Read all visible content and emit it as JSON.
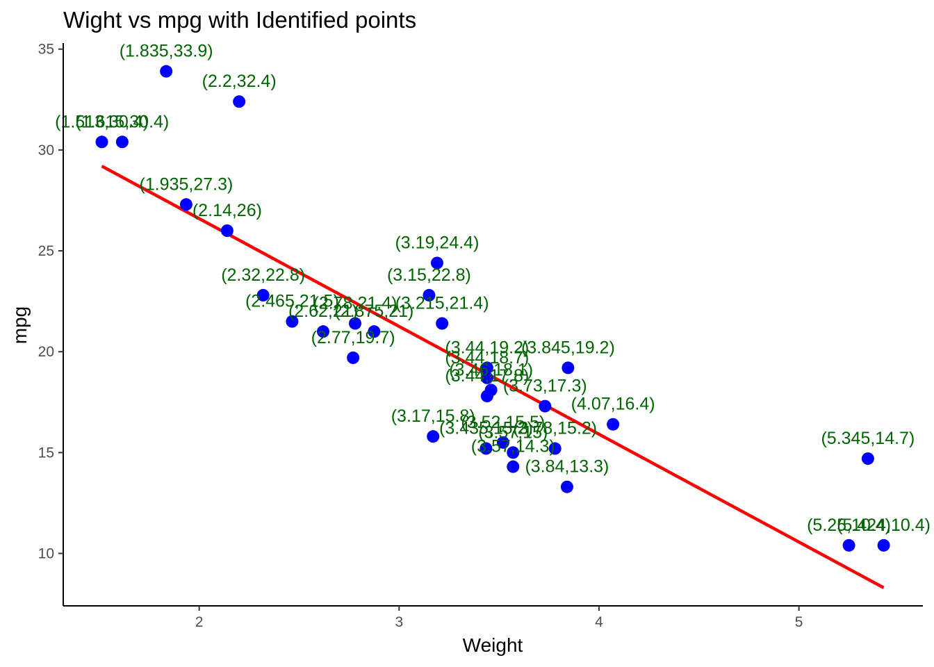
{
  "chart_data": {
    "type": "scatter",
    "title": "Wight vs mpg with Identified points",
    "xlabel": "Weight",
    "ylabel": "mpg",
    "xlim": [
      1.32,
      5.62
    ],
    "ylim": [
      7.4,
      35.3
    ],
    "x_ticks": [
      2,
      3,
      4,
      5
    ],
    "y_ticks": [
      10,
      15,
      20,
      25,
      30,
      35
    ],
    "grid": false,
    "legend": "none",
    "point_color": "#0000ff",
    "label_color": "#006400",
    "line_color": "#ff0000",
    "axis_color": "#000000",
    "points": [
      {
        "x": 2.62,
        "y": 21.0,
        "label": "(2.62,21)"
      },
      {
        "x": 2.875,
        "y": 21.0,
        "label": "(2.875,21)"
      },
      {
        "x": 2.32,
        "y": 22.8,
        "label": "(2.32,22.8)"
      },
      {
        "x": 3.215,
        "y": 21.4,
        "label": "(3.215,21.4)"
      },
      {
        "x": 3.44,
        "y": 18.7,
        "label": "(3.44,18.7)"
      },
      {
        "x": 3.46,
        "y": 18.1,
        "label": "(3.46,18.1)"
      },
      {
        "x": 3.57,
        "y": 14.3,
        "label": "(3.57,14.3)"
      },
      {
        "x": 3.19,
        "y": 24.4,
        "label": "(3.19,24.4)"
      },
      {
        "x": 3.15,
        "y": 22.8,
        "label": "(3.15,22.8)"
      },
      {
        "x": 3.44,
        "y": 19.2,
        "label": "(3.44,19.2)"
      },
      {
        "x": 3.44,
        "y": 17.8,
        "label": "(3.44,17.8)"
      },
      {
        "x": 4.07,
        "y": 16.4,
        "label": "(4.07,16.4)"
      },
      {
        "x": 3.73,
        "y": 17.3,
        "label": "(3.73,17.3)"
      },
      {
        "x": 3.78,
        "y": 15.2,
        "label": "(3.78,15.2)"
      },
      {
        "x": 5.25,
        "y": 10.4,
        "label": "(5.25,10.4)"
      },
      {
        "x": 5.424,
        "y": 10.4,
        "label": "(5.424,10.4)"
      },
      {
        "x": 5.345,
        "y": 14.7,
        "label": "(5.345,14.7)"
      },
      {
        "x": 2.2,
        "y": 32.4,
        "label": "(2.2,32.4)"
      },
      {
        "x": 1.615,
        "y": 30.4,
        "label": "(1.615,30.4)"
      },
      {
        "x": 1.835,
        "y": 33.9,
        "label": "(1.835,33.9)"
      },
      {
        "x": 2.465,
        "y": 21.5,
        "label": "(2.465,21.5)"
      },
      {
        "x": 3.52,
        "y": 15.5,
        "label": "(3.52,15.5)"
      },
      {
        "x": 3.435,
        "y": 15.2,
        "label": "(3.435,15.2)"
      },
      {
        "x": 3.84,
        "y": 13.3,
        "label": "(3.84,13.3)"
      },
      {
        "x": 3.845,
        "y": 19.2,
        "label": "(3.845,19.2)"
      },
      {
        "x": 1.935,
        "y": 27.3,
        "label": "(1.935,27.3)"
      },
      {
        "x": 2.14,
        "y": 26.0,
        "label": "(2.14,26)"
      },
      {
        "x": 1.513,
        "y": 30.4,
        "label": "(1.513,30.4)"
      },
      {
        "x": 3.17,
        "y": 15.8,
        "label": "(3.17,15.8)"
      },
      {
        "x": 2.77,
        "y": 19.7,
        "label": "(2.77,19.7)"
      },
      {
        "x": 3.57,
        "y": 15.0,
        "label": "(3.57,15)"
      },
      {
        "x": 2.78,
        "y": 21.4,
        "label": "(2.78,21.4)"
      }
    ],
    "regression_line": {
      "x": [
        1.513,
        5.424
      ],
      "y": [
        29.2,
        8.3
      ]
    }
  }
}
